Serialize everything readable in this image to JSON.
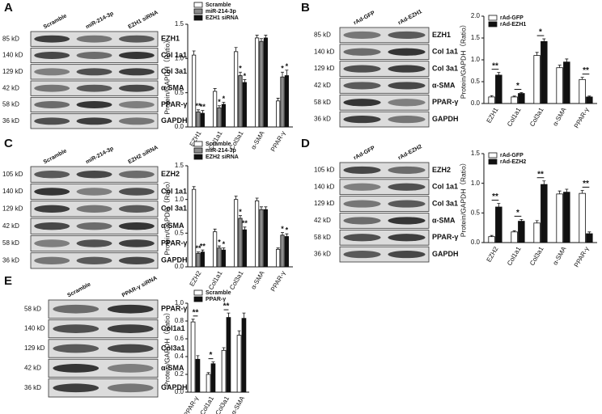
{
  "panels": [
    {
      "label": "A",
      "lanes": [
        "Scramble",
        "miR-214-3p",
        "EZH1 siRNA"
      ],
      "rows": [
        {
          "kd": "85 kD",
          "protein": "EZH1"
        },
        {
          "kd": "140 kD",
          "protein": "Col 1a1"
        },
        {
          "kd": "129 kD",
          "protein": "Col 3a1"
        },
        {
          "kd": "42 kD",
          "protein": "α-SMA"
        },
        {
          "kd": "58 kD",
          "protein": "PPAR-γ"
        },
        {
          "kd": "36 kD",
          "protein": "GAPDH"
        }
      ]
    },
    {
      "label": "B",
      "lanes": [
        "rAd-GFP",
        "rAd-EZH1"
      ],
      "rows": [
        {
          "kd": "85 kD",
          "protein": "EZH1"
        },
        {
          "kd": "140 kD",
          "protein": "Col 1a1"
        },
        {
          "kd": "129 kD",
          "protein": "Col 3a1"
        },
        {
          "kd": "42 kD",
          "protein": "α-SMA"
        },
        {
          "kd": "58 kD",
          "protein": "PPAR-γ"
        },
        {
          "kd": "36 kD",
          "protein": "GAPDH"
        }
      ]
    },
    {
      "label": "C",
      "lanes": [
        "Scramble",
        "miR-214-3p",
        "EZH2 siRNA"
      ],
      "rows": [
        {
          "kd": "105 kD",
          "protein": "EZH2"
        },
        {
          "kd": "140 kD",
          "protein": "Col 1a1"
        },
        {
          "kd": "129 kD",
          "protein": "Col 3a1"
        },
        {
          "kd": "42 kD",
          "protein": "α-SMA"
        },
        {
          "kd": "58 kD",
          "protein": "PPAR-γ"
        },
        {
          "kd": "36 kD",
          "protein": "GAPDH"
        }
      ]
    },
    {
      "label": "D",
      "lanes": [
        "rAd-GFP",
        "rAd-EZH2"
      ],
      "rows": [
        {
          "kd": "105 kD",
          "protein": "EZH2"
        },
        {
          "kd": "140 kD",
          "protein": "Col 1a1"
        },
        {
          "kd": "129 kD",
          "protein": "Col 3a1"
        },
        {
          "kd": "42 kD",
          "protein": "α-SMA"
        },
        {
          "kd": "58 kD",
          "protein": "PPAR-γ"
        },
        {
          "kd": "36 kD",
          "protein": "GAPDH"
        }
      ]
    },
    {
      "label": "E",
      "lanes": [
        "Scramble",
        "PPAR-γ siRNA"
      ],
      "rows": [
        {
          "kd": "58 kD",
          "protein": "PPAR-γ"
        },
        {
          "kd": "140 kD",
          "protein": "Col1a1"
        },
        {
          "kd": "129 kD",
          "protein": "Col3a1"
        },
        {
          "kd": "42 kD",
          "protein": "α-SMA"
        },
        {
          "kd": "36 kD",
          "protein": "GAPDH"
        }
      ]
    }
  ],
  "chart_data": [
    {
      "type": "bar",
      "y_label": "Protein/GAPDH（Ratio）",
      "categories": [
        "EZH1",
        "Col1a1",
        "Col3a1",
        "α-SMA",
        "PPAR-γ"
      ],
      "ylim": [
        0,
        1.5
      ],
      "yticks": [
        {
          "value": 0,
          "label": "0.0"
        },
        {
          "value": 0.5,
          "label": "0.5"
        },
        {
          "value": 1,
          "label": "1.0"
        },
        {
          "value": 1.5,
          "label": "1.5"
        }
      ],
      "series": [
        {
          "name": "Scramble",
          "color": "#ffffff",
          "values": [
            1.05,
            0.52,
            1.1,
            1.3,
            0.38
          ],
          "errors": [
            0.06,
            0.04,
            0.06,
            0.04,
            0.04
          ],
          "significance": [
            null,
            null,
            null,
            null,
            null
          ]
        },
        {
          "name": "miR-214-3p",
          "color": "#8c8c8c",
          "values": [
            0.22,
            0.28,
            0.75,
            1.25,
            0.73
          ],
          "errors": [
            0.03,
            0.03,
            0.05,
            0.04,
            0.07
          ],
          "significance": [
            "**",
            "*",
            "*",
            null,
            "*"
          ]
        },
        {
          "name": "EZH1 siRNA",
          "color": "#111111",
          "values": [
            0.2,
            0.33,
            0.65,
            1.3,
            0.75
          ],
          "errors": [
            0.04,
            0.03,
            0.04,
            0.04,
            0.08
          ],
          "significance": [
            "**",
            "*",
            "*",
            null,
            "*"
          ]
        }
      ]
    },
    {
      "type": "bar",
      "y_label": "Protein/GAPDH（Ratio）",
      "categories": [
        "EZH1",
        "Col1a1",
        "Col3a1",
        "α-SMA",
        "PPAR-γ"
      ],
      "ylim": [
        0,
        2
      ],
      "yticks": [
        {
          "value": 0,
          "label": "0.0"
        },
        {
          "value": 0.5,
          "label": "0.5"
        },
        {
          "value": 1,
          "label": "1.0"
        },
        {
          "value": 1.5,
          "label": "1.5"
        },
        {
          "value": 2,
          "label": "2.0"
        }
      ],
      "series": [
        {
          "name": "rAd-GFP",
          "color": "#ffffff",
          "values": [
            0.15,
            0.15,
            1.1,
            0.82,
            0.55
          ],
          "errors": [
            0.03,
            0.02,
            0.07,
            0.06,
            0.05
          ],
          "significance": [
            null,
            null,
            null,
            null,
            null
          ]
        },
        {
          "name": "rAd-EZH1",
          "color": "#111111",
          "values": [
            0.65,
            0.23,
            1.42,
            0.95,
            0.15
          ],
          "errors": [
            0.06,
            0.02,
            0.06,
            0.07,
            0.02
          ],
          "significance": [
            "**",
            "*",
            "*",
            null,
            "**"
          ]
        }
      ]
    },
    {
      "type": "bar",
      "y_label": "Protein/GAPDH（Ratio）",
      "categories": [
        "EZH2",
        "Col1a1",
        "Col3a1",
        "α-SMA",
        "PPAR-γ"
      ],
      "ylim": [
        0,
        1.5
      ],
      "yticks": [
        {
          "value": 0,
          "label": "0.0"
        },
        {
          "value": 0.5,
          "label": "0.5"
        },
        {
          "value": 1,
          "label": "1.0"
        },
        {
          "value": 1.5,
          "label": "1.5"
        }
      ],
      "series": [
        {
          "name": "Scramble",
          "color": "#ffffff",
          "values": [
            1.15,
            0.52,
            1.0,
            0.98,
            0.26
          ],
          "errors": [
            0.04,
            0.04,
            0.05,
            0.04,
            0.02
          ],
          "significance": [
            null,
            null,
            null,
            null,
            null
          ]
        },
        {
          "name": "miR-214-3p",
          "color": "#8c8c8c",
          "values": [
            0.2,
            0.28,
            0.72,
            0.85,
            0.47
          ],
          "errors": [
            0.02,
            0.03,
            0.04,
            0.04,
            0.04
          ],
          "significance": [
            "**",
            "*",
            "*",
            null,
            "*"
          ]
        },
        {
          "name": "EZH2 siRNA",
          "color": "#111111",
          "values": [
            0.22,
            0.25,
            0.55,
            0.85,
            0.45
          ],
          "errors": [
            0.03,
            0.03,
            0.04,
            0.04,
            0.04
          ],
          "significance": [
            "**",
            "*",
            "**",
            null,
            "*"
          ]
        }
      ]
    },
    {
      "type": "bar",
      "y_label": "Protein/GAPDH（Ratio）",
      "categories": [
        "EZH2",
        "Col1a1",
        "Col3a1",
        "α-SMA",
        "PPAR-γ"
      ],
      "ylim": [
        0,
        1.5
      ],
      "yticks": [
        {
          "value": 0,
          "label": "0.0"
        },
        {
          "value": 0.5,
          "label": "0.5"
        },
        {
          "value": 1,
          "label": "1.0"
        },
        {
          "value": 1.5,
          "label": "1.5"
        }
      ],
      "series": [
        {
          "name": "rAd-GFP",
          "color": "#ffffff",
          "values": [
            0.1,
            0.18,
            0.33,
            0.82,
            0.83
          ],
          "errors": [
            0.02,
            0.02,
            0.04,
            0.05,
            0.05
          ],
          "significance": [
            null,
            null,
            null,
            null,
            null
          ]
        },
        {
          "name": "rAd-EZH2",
          "color": "#111111",
          "values": [
            0.6,
            0.36,
            0.98,
            0.85,
            0.15
          ],
          "errors": [
            0.06,
            0.03,
            0.06,
            0.05,
            0.03
          ],
          "significance": [
            "**",
            "*",
            "**",
            null,
            "**"
          ]
        }
      ]
    },
    {
      "type": "bar",
      "y_label": "Protein/GAPDH（Ratio）",
      "categories": [
        "PPAR-γ",
        "Col1a1",
        "Col3a1",
        "α-SMA"
      ],
      "ylim": [
        0,
        1
      ],
      "yticks": [
        {
          "value": 0,
          "label": "0.0"
        },
        {
          "value": 0.2,
          "label": "0.2"
        },
        {
          "value": 0.4,
          "label": "0.4"
        },
        {
          "value": 0.6,
          "label": "0.6"
        },
        {
          "value": 0.8,
          "label": "0.8"
        },
        {
          "value": 1,
          "label": "1.0"
        }
      ],
      "series": [
        {
          "name": "Scramble",
          "color": "#ffffff",
          "values": [
            0.79,
            0.2,
            0.47,
            0.64
          ],
          "errors": [
            0.03,
            0.02,
            0.03,
            0.05
          ],
          "significance": [
            null,
            null,
            null,
            null
          ]
        },
        {
          "name": "PPAR-γ",
          "color": "#111111",
          "values": [
            0.37,
            0.32,
            0.84,
            0.83
          ],
          "errors": [
            0.04,
            0.02,
            0.05,
            0.06
          ],
          "significance": [
            "**",
            "*",
            "**",
            null
          ]
        }
      ]
    }
  ]
}
